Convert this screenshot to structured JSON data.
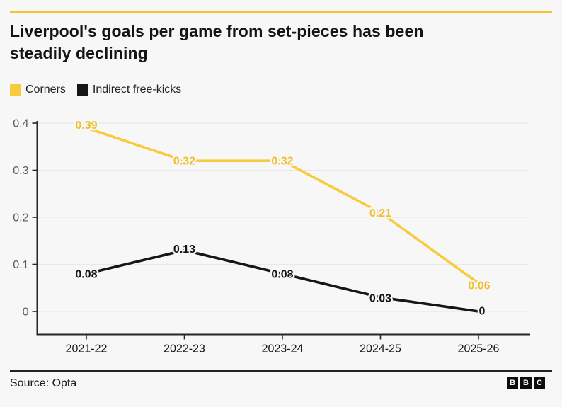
{
  "header": {
    "title_line1": "Liverpool's goals per game from set-pieces has been",
    "title_line2": "steadily declining"
  },
  "legend": [
    {
      "label": "Corners",
      "color": "#f8cb3e"
    },
    {
      "label": "Indirect free-kicks",
      "color": "#161616"
    }
  ],
  "colors": {
    "accent_yellow": "#f4c32f",
    "line_yellow": "#f8cb3e",
    "yellow_label": "#f0be2c",
    "line_black": "#161616",
    "gridline": "#e9e9e9",
    "axis": "#262626",
    "y_tick_text": "#5a5a5a",
    "x_tick_text": "#161616",
    "background": "#f7f7f7"
  },
  "chart_data": {
    "type": "line",
    "title": "Liverpool's goals per game from set-pieces has been steadily declining",
    "categories": [
      "2021-22",
      "2022-23",
      "2023-24",
      "2024-25",
      "2025-26"
    ],
    "series": [
      {
        "name": "Corners",
        "color": "#f8cb3e",
        "label_color": "#f0be2c",
        "values": [
          0.39,
          0.32,
          0.32,
          0.21,
          0.06
        ],
        "labels": [
          "0.39",
          "0.32",
          "0.32",
          "0.21",
          "0.06"
        ]
      },
      {
        "name": "Indirect free-kicks",
        "color": "#161616",
        "label_color": "#161616",
        "values": [
          0.08,
          0.13,
          0.08,
          0.03,
          0
        ],
        "labels": [
          "0.08",
          "0.13",
          "0.08",
          "0.03",
          "0"
        ]
      }
    ],
    "y_ticks": [
      {
        "value": 0,
        "label": "0"
      },
      {
        "value": 0.1,
        "label": "0.1"
      },
      {
        "value": 0.2,
        "label": "0.2"
      },
      {
        "value": 0.3,
        "label": "0.3"
      },
      {
        "value": 0.4,
        "label": "0.4"
      }
    ],
    "xlabel": "",
    "ylabel": "",
    "ylim": [
      0,
      0.4
    ],
    "grid": true,
    "legend_position": "top-left"
  },
  "footer": {
    "source": "Source: Opta",
    "logo_letters": [
      "B",
      "B",
      "C"
    ]
  }
}
